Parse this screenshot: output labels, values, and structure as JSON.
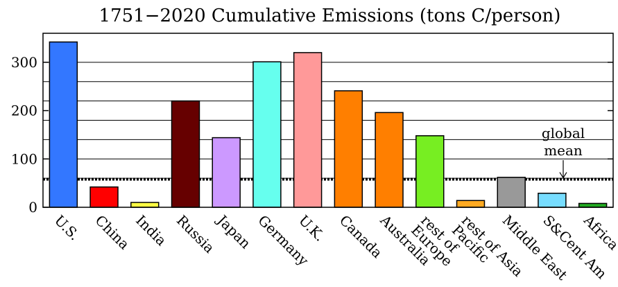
{
  "chart_data": {
    "type": "bar",
    "title": "1751−2020 Cumulative Emissions (tons C/person)",
    "xlabel": "",
    "ylabel": "",
    "ylim": [
      0,
      360
    ],
    "yticks": [
      0,
      100,
      200,
      300
    ],
    "gridlines_y": [
      60,
      100,
      140,
      180,
      220,
      260,
      300
    ],
    "grid": true,
    "categories": [
      [
        "U.S."
      ],
      [
        "China"
      ],
      [
        "India"
      ],
      [
        "Russia"
      ],
      [
        "Japan"
      ],
      [
        "Germany"
      ],
      [
        "U.K."
      ],
      [
        "Canada"
      ],
      [
        "Australia"
      ],
      [
        "rest of",
        "Europe"
      ],
      [
        "rest of Asia",
        "Pacific"
      ],
      [
        "Middle East"
      ],
      [
        "S&Cent Am"
      ],
      [
        "Africa"
      ]
    ],
    "values": [
      342,
      42,
      10,
      220,
      144,
      301,
      320,
      241,
      196,
      148,
      14,
      62,
      29,
      8
    ],
    "colors": [
      "#3377ff",
      "#ff0000",
      "#ffff44",
      "#660000",
      "#cc99ff",
      "#66ffee",
      "#ff9999",
      "#ff7f00",
      "#ff7f00",
      "#77ee22",
      "#ffaa22",
      "#999999",
      "#77ddff",
      "#22aa22"
    ],
    "reference_line": {
      "value": 58,
      "style": "dotted"
    },
    "annotation": {
      "lines": [
        "global",
        "mean"
      ],
      "arrow": "down"
    }
  }
}
